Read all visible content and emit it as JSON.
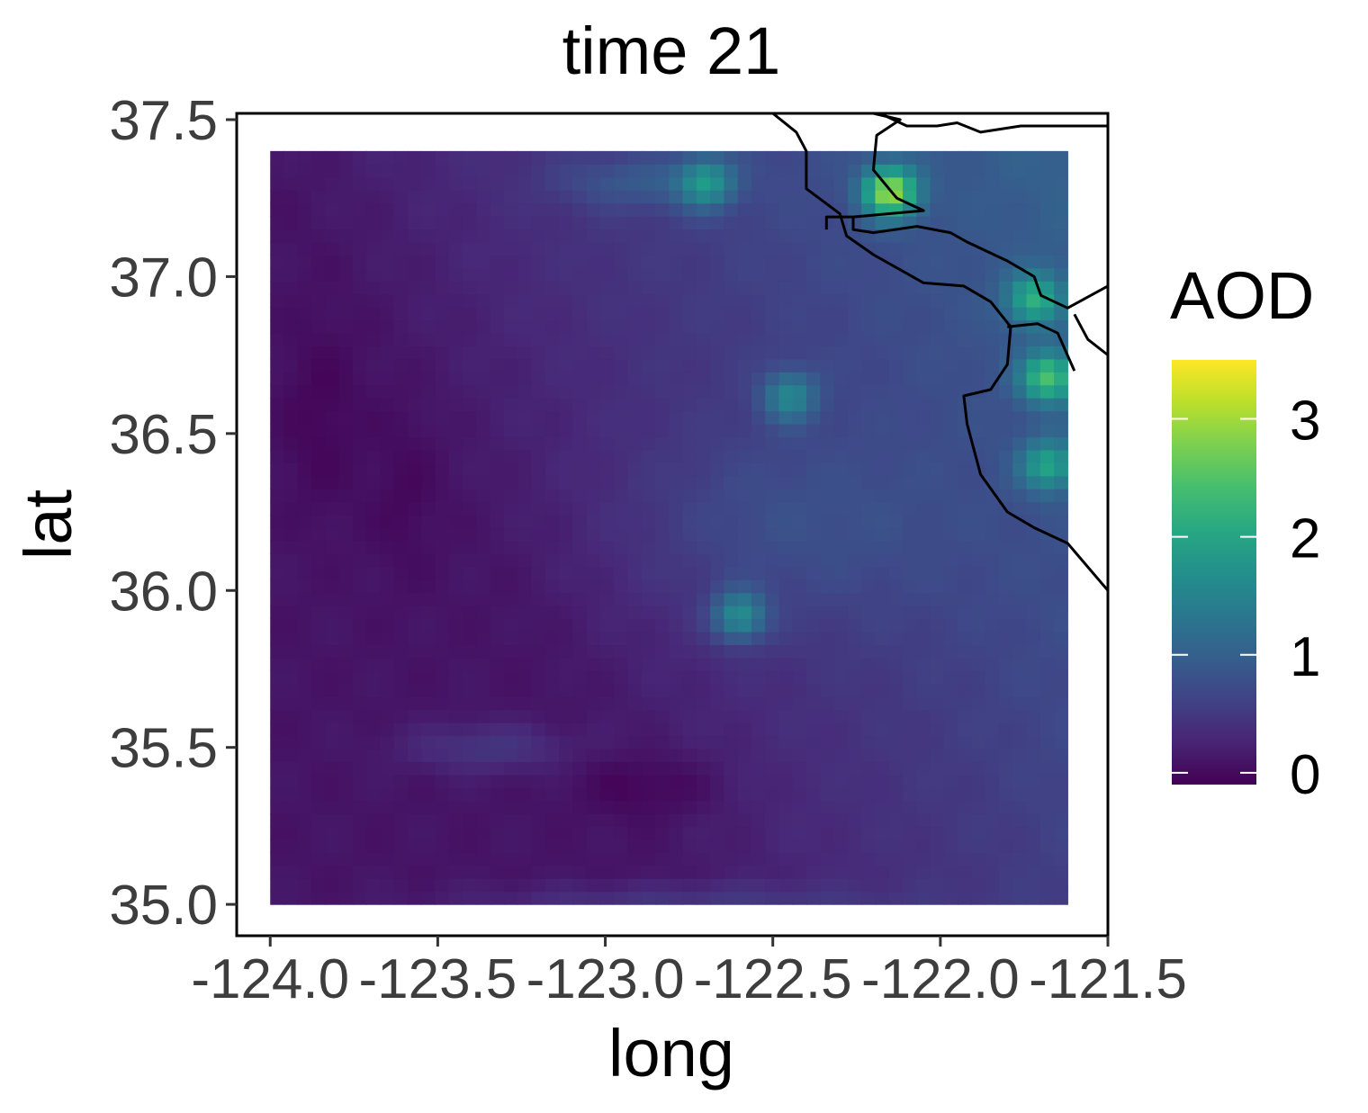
{
  "chart_data": {
    "type": "heatmap",
    "title": "time 21",
    "xlabel": "long",
    "ylabel": "lat",
    "xlim": [
      -124.1,
      -121.5
    ],
    "ylim": [
      34.9,
      37.52
    ],
    "x_ticks": [
      -124.0,
      -123.5,
      -123.0,
      -122.5,
      -122.0,
      -121.5
    ],
    "x_tick_labels": [
      "-124.0",
      "-123.5",
      "-123.0",
      "-122.5",
      "-122.0",
      "-121.5"
    ],
    "y_ticks": [
      35.0,
      35.5,
      36.0,
      36.5,
      37.0,
      37.5
    ],
    "y_tick_labels": [
      "35.0",
      "35.5",
      "36.0",
      "36.5",
      "37.0",
      "37.5"
    ],
    "grid": false,
    "colormap": "viridis",
    "legend": {
      "title": "AOD",
      "position": "right",
      "range": [
        -0.1,
        3.5
      ],
      "ticks": [
        0,
        1,
        2,
        3
      ],
      "tick_labels": [
        "0",
        "1",
        "2",
        "3"
      ]
    },
    "raster_extent": {
      "long": [
        -124.0,
        -121.62
      ],
      "lat": [
        35.0,
        37.4
      ]
    },
    "field_description": {
      "background": 0.5,
      "hotspots": [
        {
          "long": -122.15,
          "lat": 37.27,
          "aod": 3.0
        },
        {
          "long": -121.68,
          "lat": 36.68,
          "aod": 2.4
        },
        {
          "long": -122.6,
          "lat": 35.92,
          "aod": 2.0
        },
        {
          "long": -122.7,
          "lat": 37.3,
          "aod": 1.9
        },
        {
          "long": -122.45,
          "lat": 36.62,
          "aod": 1.8
        },
        {
          "long": -121.72,
          "lat": 36.93,
          "aod": 2.1
        },
        {
          "long": -121.68,
          "lat": 36.4,
          "aod": 2.0
        }
      ]
    },
    "coastline": [
      [
        [
          -122.5,
          37.52
        ],
        [
          -122.43,
          37.46
        ],
        [
          -122.4,
          37.4
        ],
        [
          -122.4,
          37.28
        ],
        [
          -122.3,
          37.2
        ],
        [
          -122.28,
          37.13
        ],
        [
          -122.2,
          37.07
        ],
        [
          -122.05,
          36.98
        ],
        [
          -121.93,
          36.97
        ],
        [
          -121.85,
          36.92
        ],
        [
          -121.79,
          36.84
        ],
        [
          -121.8,
          36.72
        ],
        [
          -121.85,
          36.64
        ],
        [
          -121.93,
          36.62
        ],
        [
          -121.92,
          36.53
        ],
        [
          -121.88,
          36.37
        ],
        [
          -121.8,
          36.25
        ],
        [
          -121.72,
          36.2
        ],
        [
          -121.62,
          36.15
        ],
        [
          -121.5,
          36.0
        ]
      ]
    ],
    "boundaries": [
      [
        [
          -122.18,
          37.52
        ],
        [
          -122.1,
          37.48
        ],
        [
          -122.01,
          37.48
        ],
        [
          -121.95,
          37.49
        ],
        [
          -121.88,
          37.46
        ],
        [
          -121.76,
          37.48
        ],
        [
          -121.5,
          37.48
        ]
      ],
      [
        [
          -122.2,
          37.52
        ],
        [
          -122.12,
          37.5
        ],
        [
          -122.19,
          37.45
        ],
        [
          -122.2,
          37.34
        ],
        [
          -122.13,
          37.25
        ],
        [
          -122.05,
          37.21
        ],
        [
          -122.26,
          37.19
        ],
        [
          -122.34,
          37.19
        ],
        [
          -122.34,
          37.15
        ]
      ],
      [
        [
          -122.26,
          37.19
        ],
        [
          -122.26,
          37.15
        ],
        [
          -122.2,
          37.14
        ],
        [
          -122.07,
          37.16
        ],
        [
          -121.97,
          37.14
        ],
        [
          -121.92,
          37.11
        ],
        [
          -121.8,
          37.05
        ],
        [
          -121.72,
          37.0
        ],
        [
          -121.7,
          36.94
        ],
        [
          -121.62,
          36.9
        ],
        [
          -121.5,
          36.97
        ]
      ],
      [
        [
          -121.6,
          36.88
        ],
        [
          -121.56,
          36.8
        ],
        [
          -121.5,
          36.75
        ]
      ],
      [
        [
          -121.8,
          36.84
        ],
        [
          -121.71,
          36.85
        ],
        [
          -121.65,
          36.82
        ],
        [
          -121.6,
          36.7
        ]
      ]
    ]
  }
}
